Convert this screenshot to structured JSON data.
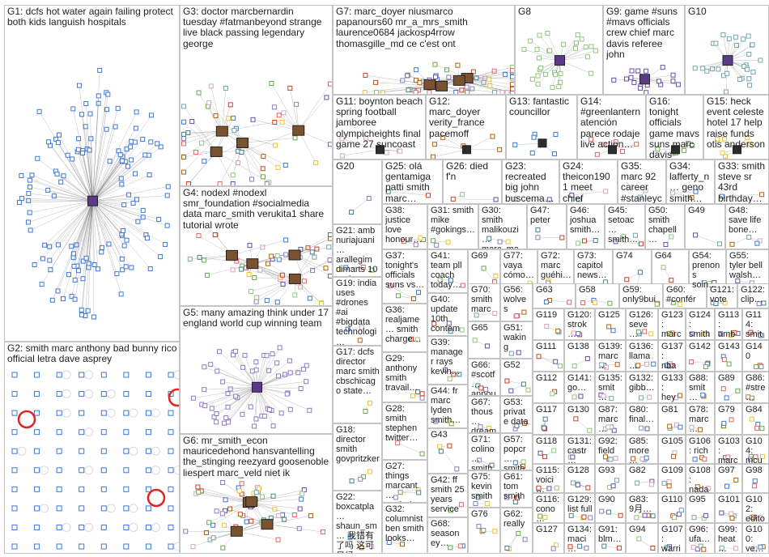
{
  "groups": [
    {
      "label": "G1: dcfs hot water again failing protect both kids languish hospitals"
    },
    {
      "label": "G2: smith marc anthony bad bunny rico official letra dave asprey"
    },
    {
      "label": "G3: doctor marcbernardin tuesday #fatmanbeyond strange live black passing legendary george"
    },
    {
      "label": "G4: nodexl #nodexl smr_foundation #socialmedia data marc_smith verukita1 share tutorial wrote"
    },
    {
      "label": "G5: many amazing think under 17 england world cup winning team"
    },
    {
      "label": "G6: mr_smith_econ mauricedehond hansvantelling the_stinging reezyard goosenoble liespert marc_veld niet ik"
    },
    {
      "label": "G7: marc_doyer niusmarco papanours60 mr_a_mrs_smith laurence0684 jackosp4rrow thomasgille_md ce c'est ont"
    },
    {
      "label": "G8"
    },
    {
      "label": "G9: game #suns #mavs officials crew chief marc davis referee john"
    },
    {
      "label": "G10"
    },
    {
      "label": "G11: boynton beach spring football jamboree olympicheights final game 27 suncoast"
    },
    {
      "label": "G12: marc_doyer verity_france pacemoff"
    },
    {
      "label": "G13: fantastic councillor"
    },
    {
      "label": "G14: #greenlantern atención parece rodaje live action…"
    },
    {
      "label": "G16: tonight officials game mavs suns marc davis john…"
    },
    {
      "label": "G15: heck event celeste hotel 17 help raise funds otis anderson"
    },
    {
      "label": "G20"
    },
    {
      "label": "G25: olá gentamiga patti smith marc…"
    },
    {
      "label": "G26: died f'n"
    },
    {
      "label": "G23: recreated big john buscema…"
    },
    {
      "label": "G24: theicon1901 meet chief developmen…"
    },
    {
      "label": "G35: marc 92 career #stanleyc… playoff…"
    },
    {
      "label": "G34: lafferty_n… geno smith…"
    },
    {
      "label": "G33: smith steve sr 43rd birthday…"
    },
    {
      "label": "G21: amb nuriajuani… arallegim dimarts 10 parlarem ali smith…"
    },
    {
      "label": "G38: justice love honour…"
    },
    {
      "label": "G31: smith mike #gokings…"
    },
    {
      "label": "G30: smith malikouzi… marc_ma…"
    },
    {
      "label": "G47: peter"
    },
    {
      "label": "G46: joshua smith…"
    },
    {
      "label": "G45: setoac… smith…"
    },
    {
      "label": "G50: smith chapell…"
    },
    {
      "label": "G49"
    },
    {
      "label": "G48: save life bone…"
    },
    {
      "label": "G19: india uses #drones #ai #bigdata technologi…"
    },
    {
      "label": "G37: tonight's officials suns vs…"
    },
    {
      "label": "G41: team pll coach today…"
    },
    {
      "label": "G69"
    },
    {
      "label": "G77: vaya cómo…"
    },
    {
      "label": "G72: marc guéhi…"
    },
    {
      "label": "G73: capitol news…"
    },
    {
      "label": "G74"
    },
    {
      "label": "G64"
    },
    {
      "label": "G54: prenons soin…"
    },
    {
      "label": "G55: tyler bell walsh…"
    },
    {
      "label": "G70: smith marc…"
    },
    {
      "label": "G56: wolves"
    },
    {
      "label": "G63"
    },
    {
      "label": "G58"
    },
    {
      "label": "G59: only9bui…"
    },
    {
      "label": "G60: #confér…"
    },
    {
      "label": "G121: vote"
    },
    {
      "label": "G122: clip…"
    },
    {
      "label": "G40: update 10th contem…"
    },
    {
      "label": "G36: realjame… smith charge…"
    },
    {
      "label": "G65"
    },
    {
      "label": "G51: waking"
    },
    {
      "label": "G119"
    },
    {
      "label": "G120: strok…"
    },
    {
      "label": "G125"
    },
    {
      "label": "G126: seve…"
    },
    {
      "label": "G123: marc…"
    },
    {
      "label": "G124: smith"
    },
    {
      "label": "G113: amb…"
    },
    {
      "label": "G114: smit…"
    },
    {
      "label": "G39: manager rays kevin…"
    },
    {
      "label": "G111"
    },
    {
      "label": "G138"
    },
    {
      "label": "G139: marc…"
    },
    {
      "label": "G136: llama…"
    },
    {
      "label": "G137: nba…"
    },
    {
      "label": "G142"
    },
    {
      "label": "G143"
    },
    {
      "label": "G140"
    },
    {
      "label": "G17: dcfs director marc smith cbschicago state…"
    },
    {
      "label": "G29: anthony smith travail…"
    },
    {
      "label": "G66: #scotf… annou…"
    },
    {
      "label": "G52"
    },
    {
      "label": "G112"
    },
    {
      "label": "G141: go…"
    },
    {
      "label": "G135: smit…"
    },
    {
      "label": "G132: gibb…"
    },
    {
      "label": "G133: hey…"
    },
    {
      "label": "G88: smit…"
    },
    {
      "label": "G89"
    },
    {
      "label": "G86: #stre…"
    },
    {
      "label": "G44: fr marc lyden smith…"
    },
    {
      "label": "G67: thous… dream…"
    },
    {
      "label": "G53: private data"
    },
    {
      "label": "G117"
    },
    {
      "label": "G130"
    },
    {
      "label": "G87: marc…"
    },
    {
      "label": "G80: final…"
    },
    {
      "label": "G81"
    },
    {
      "label": "G78: marc…"
    },
    {
      "label": "G79"
    },
    {
      "label": "G84"
    },
    {
      "label": "G28: smith stephen twitter…"
    },
    {
      "label": "G18: director smith govpritzker"
    },
    {
      "label": "G43"
    },
    {
      "label": "G71: colino… smith…"
    },
    {
      "label": "G57: popcr… smith…"
    },
    {
      "label": "G118"
    },
    {
      "label": "G131: castr…"
    },
    {
      "label": "G92: field"
    },
    {
      "label": "G85: more…"
    },
    {
      "label": "G105"
    },
    {
      "label": "G106: rich"
    },
    {
      "label": "G103: marc…"
    },
    {
      "label": "G104: mcu…"
    },
    {
      "label": "G27: things marcant… smthabo…"
    },
    {
      "label": "G75: kevin smith…"
    },
    {
      "label": "G61: tom smith…"
    },
    {
      "label": "G115: voici…"
    },
    {
      "label": "G128"
    },
    {
      "label": "G93"
    },
    {
      "label": "G82"
    },
    {
      "label": "G109"
    },
    {
      "label": "G108: nada…"
    },
    {
      "label": "G97"
    },
    {
      "label": "G98"
    },
    {
      "label": "G42: ff smith 25 years service…"
    },
    {
      "label": "G116: cono…"
    },
    {
      "label": "G129: list full"
    },
    {
      "label": "G90"
    },
    {
      "label": "G83: 9月…"
    },
    {
      "label": "G110"
    },
    {
      "label": "G95"
    },
    {
      "label": "G101"
    },
    {
      "label": "G102: edito…"
    },
    {
      "label": "G22: boxcatpla… shaun_sm… 我错有了吗 这可是经…"
    },
    {
      "label": "G32: columnist ben smith looks…"
    },
    {
      "label": "G68: season ey…"
    },
    {
      "label": "G76"
    },
    {
      "label": "G62: really"
    },
    {
      "label": "G127"
    },
    {
      "label": "G134: maci…"
    },
    {
      "label": "G91: blm…"
    },
    {
      "label": "G94"
    },
    {
      "label": "G107: warri…"
    },
    {
      "label": "G96: ufa…"
    },
    {
      "label": "G99: heat…"
    },
    {
      "label": "G100: ve…"
    }
  ]
}
